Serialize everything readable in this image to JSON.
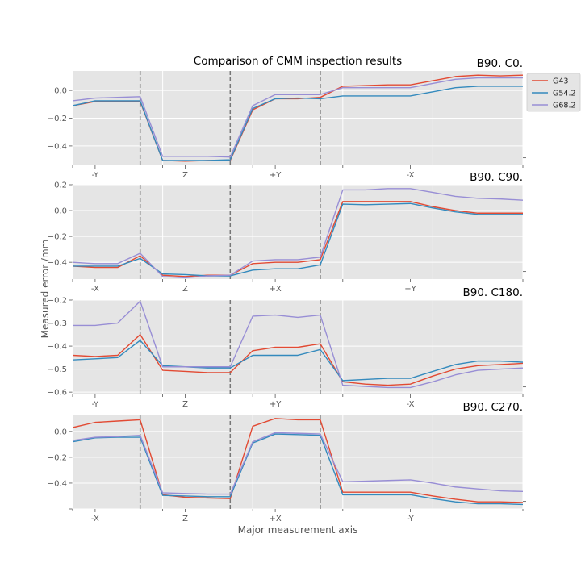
{
  "figure": {
    "title": "Comparison of CMM inspection results",
    "xlabel": "Major measurement axis",
    "ylabel": "Measured error /mm"
  },
  "colors": {
    "G43": "#E24A33",
    "G54.2": "#348ABD",
    "G68.2": "#988ED5"
  },
  "chart_data": [
    {
      "type": "line",
      "title": "B90. C0.",
      "ylim": [
        -0.54,
        0.14
      ],
      "yticks": [
        -0.4,
        -0.2,
        0.0
      ],
      "yticklabels": [
        "−0.4",
        "−0.2",
        "0.0"
      ],
      "xlim": [
        0,
        20
      ],
      "xticklabels": [
        {
          "x": 1,
          "label": "-Y"
        },
        {
          "x": 5,
          "label": "Z"
        },
        {
          "x": 9,
          "label": "+Y"
        },
        {
          "x": 15,
          "label": "-X"
        }
      ],
      "dividers": [
        3,
        7,
        11
      ],
      "grid": true,
      "series": [
        {
          "name": "G43",
          "x": [
            0,
            1,
            2,
            3,
            4,
            5,
            6,
            7,
            8,
            9,
            10,
            11,
            12,
            13,
            14,
            15,
            16,
            17,
            18,
            19,
            20
          ],
          "values": [
            -0.11,
            -0.08,
            -0.08,
            -0.08,
            -0.505,
            -0.51,
            -0.505,
            -0.505,
            -0.14,
            -0.06,
            -0.06,
            -0.05,
            0.03,
            0.035,
            0.04,
            0.04,
            0.07,
            0.1,
            0.11,
            0.105,
            0.11
          ]
        },
        {
          "name": "G54.2",
          "x": [
            0,
            1,
            2,
            3,
            4,
            5,
            6,
            7,
            8,
            9,
            10,
            11,
            12,
            13,
            14,
            15,
            16,
            17,
            18,
            19,
            20
          ],
          "values": [
            -0.11,
            -0.075,
            -0.075,
            -0.075,
            -0.505,
            -0.505,
            -0.505,
            -0.5,
            -0.13,
            -0.06,
            -0.055,
            -0.06,
            -0.04,
            -0.04,
            -0.04,
            -0.04,
            -0.01,
            0.02,
            0.03,
            0.03,
            0.03
          ]
        },
        {
          "name": "G68.2",
          "x": [
            0,
            1,
            2,
            3,
            4,
            5,
            6,
            7,
            8,
            9,
            10,
            11,
            12,
            13,
            14,
            15,
            16,
            17,
            18,
            19,
            20
          ],
          "values": [
            -0.075,
            -0.055,
            -0.05,
            -0.045,
            -0.475,
            -0.475,
            -0.475,
            -0.48,
            -0.11,
            -0.03,
            -0.03,
            -0.03,
            0.02,
            0.02,
            0.02,
            0.02,
            0.05,
            0.08,
            0.09,
            0.09,
            0.09
          ]
        }
      ]
    },
    {
      "type": "line",
      "title": "B90. C90.",
      "ylim": [
        -0.53,
        0.2
      ],
      "yticks": [
        -0.4,
        -0.2,
        0.0,
        0.2
      ],
      "yticklabels": [
        "−0.4",
        "−0.2",
        "0.0",
        "0.2"
      ],
      "xlim": [
        0,
        20
      ],
      "xticklabels": [
        {
          "x": 1,
          "label": "-X"
        },
        {
          "x": 5,
          "label": "Z"
        },
        {
          "x": 9,
          "label": "+X"
        },
        {
          "x": 15,
          "label": "+Y"
        }
      ],
      "dividers": [
        3,
        7,
        11
      ],
      "grid": true,
      "series": [
        {
          "name": "G43",
          "x": [
            0,
            1,
            2,
            3,
            4,
            5,
            6,
            7,
            8,
            9,
            10,
            11,
            12,
            13,
            14,
            15,
            16,
            17,
            18,
            19,
            20
          ],
          "values": [
            -0.43,
            -0.44,
            -0.44,
            -0.35,
            -0.5,
            -0.51,
            -0.5,
            -0.5,
            -0.41,
            -0.4,
            -0.4,
            -0.38,
            0.07,
            0.07,
            0.07,
            0.07,
            0.03,
            0.0,
            -0.02,
            -0.02,
            -0.02
          ]
        },
        {
          "name": "G54.2",
          "x": [
            0,
            1,
            2,
            3,
            4,
            5,
            6,
            7,
            8,
            9,
            10,
            11,
            12,
            13,
            14,
            15,
            16,
            17,
            18,
            19,
            20
          ],
          "values": [
            -0.43,
            -0.43,
            -0.43,
            -0.37,
            -0.49,
            -0.495,
            -0.505,
            -0.505,
            -0.46,
            -0.45,
            -0.45,
            -0.42,
            0.05,
            0.045,
            0.05,
            0.055,
            0.02,
            -0.01,
            -0.03,
            -0.03,
            -0.03
          ]
        },
        {
          "name": "G68.2",
          "x": [
            0,
            1,
            2,
            3,
            4,
            5,
            6,
            7,
            8,
            9,
            10,
            11,
            12,
            13,
            14,
            15,
            16,
            17,
            18,
            19,
            20
          ],
          "values": [
            -0.4,
            -0.41,
            -0.41,
            -0.33,
            -0.51,
            -0.52,
            -0.505,
            -0.5,
            -0.39,
            -0.38,
            -0.38,
            -0.36,
            0.16,
            0.16,
            0.17,
            0.17,
            0.14,
            0.11,
            0.095,
            0.09,
            0.08
          ]
        }
      ]
    },
    {
      "type": "line",
      "title": "B90. C180.",
      "ylim": [
        -0.61,
        -0.2
      ],
      "yticks": [
        -0.6,
        -0.5,
        -0.4,
        -0.3,
        -0.2
      ],
      "yticklabels": [
        "−0.6",
        "−0.5",
        "−0.4",
        "−0.3",
        "−0.2"
      ],
      "xlim": [
        0,
        20
      ],
      "xticklabels": [
        {
          "x": 1,
          "label": "-Y"
        },
        {
          "x": 5,
          "label": "Z"
        },
        {
          "x": 9,
          "label": "+Y"
        },
        {
          "x": 15,
          "label": "-X"
        }
      ],
      "dividers": [
        3,
        7,
        11
      ],
      "grid": true,
      "series": [
        {
          "name": "G43",
          "x": [
            0,
            1,
            2,
            3,
            4,
            5,
            6,
            7,
            8,
            9,
            10,
            11,
            12,
            13,
            14,
            15,
            16,
            17,
            18,
            19,
            20
          ],
          "values": [
            -0.44,
            -0.445,
            -0.44,
            -0.35,
            -0.505,
            -0.51,
            -0.515,
            -0.515,
            -0.42,
            -0.405,
            -0.405,
            -0.39,
            -0.555,
            -0.565,
            -0.57,
            -0.565,
            -0.53,
            -0.5,
            -0.485,
            -0.48,
            -0.475
          ]
        },
        {
          "name": "G54.2",
          "x": [
            0,
            1,
            2,
            3,
            4,
            5,
            6,
            7,
            8,
            9,
            10,
            11,
            12,
            13,
            14,
            15,
            16,
            17,
            18,
            19,
            20
          ],
          "values": [
            -0.46,
            -0.455,
            -0.45,
            -0.375,
            -0.485,
            -0.49,
            -0.495,
            -0.495,
            -0.44,
            -0.44,
            -0.44,
            -0.415,
            -0.55,
            -0.545,
            -0.54,
            -0.54,
            -0.51,
            -0.48,
            -0.465,
            -0.465,
            -0.47
          ]
        },
        {
          "name": "G68.2",
          "x": [
            0,
            1,
            2,
            3,
            4,
            5,
            6,
            7,
            8,
            9,
            10,
            11,
            12,
            13,
            14,
            15,
            16,
            17,
            18,
            19,
            20
          ],
          "values": [
            -0.31,
            -0.31,
            -0.3,
            -0.205,
            -0.49,
            -0.49,
            -0.49,
            -0.49,
            -0.27,
            -0.265,
            -0.275,
            -0.265,
            -0.57,
            -0.575,
            -0.58,
            -0.58,
            -0.555,
            -0.525,
            -0.505,
            -0.5,
            -0.495
          ]
        }
      ]
    },
    {
      "type": "line",
      "title": "B90. C270.",
      "ylim": [
        -0.6,
        0.13
      ],
      "yticks": [
        -0.6,
        -0.4,
        -0.2,
        0.0
      ],
      "yticklabels": [
        "",
        "−0.4",
        "−0.2",
        "0.0"
      ],
      "xlim": [
        0,
        20
      ],
      "xticklabels": [
        {
          "x": 1,
          "label": "-X"
        },
        {
          "x": 5,
          "label": "Z"
        },
        {
          "x": 9,
          "label": "+X"
        },
        {
          "x": 15,
          "label": "-Y"
        }
      ],
      "dividers": [
        3,
        7,
        11
      ],
      "grid": true,
      "series": [
        {
          "name": "G43",
          "x": [
            0,
            1,
            2,
            3,
            4,
            5,
            6,
            7,
            8,
            9,
            10,
            11,
            12,
            13,
            14,
            15,
            16,
            17,
            18,
            19,
            20
          ],
          "values": [
            0.03,
            0.07,
            0.08,
            0.09,
            -0.49,
            -0.51,
            -0.515,
            -0.52,
            0.04,
            0.1,
            0.09,
            0.09,
            -0.47,
            -0.47,
            -0.47,
            -0.47,
            -0.5,
            -0.525,
            -0.545,
            -0.545,
            -0.55
          ]
        },
        {
          "name": "G54.2",
          "x": [
            0,
            1,
            2,
            3,
            4,
            5,
            6,
            7,
            8,
            9,
            10,
            11,
            12,
            13,
            14,
            15,
            16,
            17,
            18,
            19,
            20
          ],
          "values": [
            -0.08,
            -0.05,
            -0.045,
            -0.045,
            -0.495,
            -0.5,
            -0.505,
            -0.505,
            -0.09,
            -0.02,
            -0.025,
            -0.03,
            -0.49,
            -0.49,
            -0.49,
            -0.49,
            -0.52,
            -0.545,
            -0.56,
            -0.56,
            -0.565
          ]
        },
        {
          "name": "G68.2",
          "x": [
            0,
            1,
            2,
            3,
            4,
            5,
            6,
            7,
            8,
            9,
            10,
            11,
            12,
            13,
            14,
            15,
            16,
            17,
            18,
            19,
            20
          ],
          "values": [
            -0.07,
            -0.045,
            -0.04,
            -0.03,
            -0.475,
            -0.48,
            -0.485,
            -0.485,
            -0.08,
            -0.01,
            -0.015,
            -0.02,
            -0.39,
            -0.385,
            -0.38,
            -0.375,
            -0.4,
            -0.43,
            -0.445,
            -0.46,
            -0.465
          ]
        }
      ]
    }
  ],
  "legend": {
    "placement": "top-right",
    "entries": [
      "G43",
      "G54.2",
      "G68.2"
    ]
  }
}
